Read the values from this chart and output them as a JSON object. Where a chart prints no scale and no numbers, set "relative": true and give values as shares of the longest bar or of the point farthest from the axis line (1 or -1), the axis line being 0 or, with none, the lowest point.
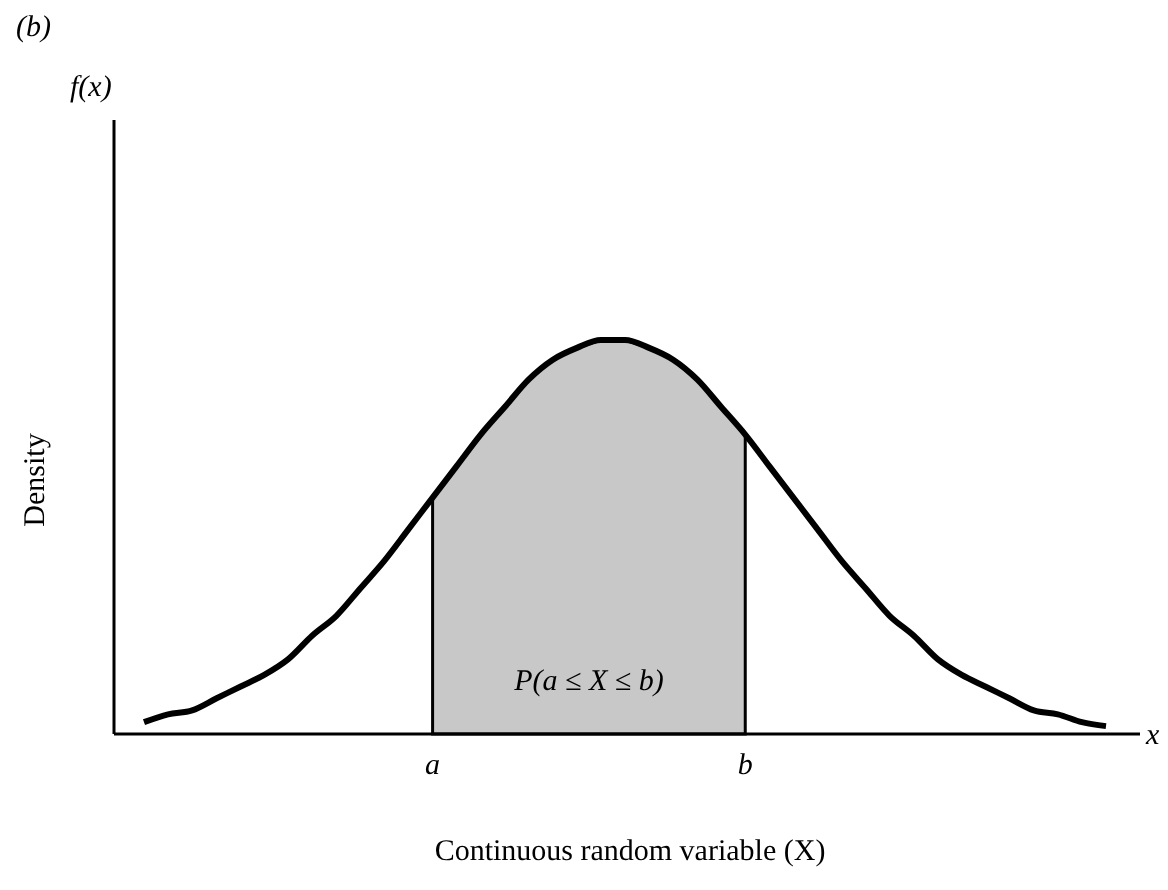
{
  "chart_data": {
    "type": "line",
    "title": "(b)",
    "xlabel": "Continuous random variable (X)",
    "ylabel": "Density",
    "relative": true,
    "categories": [
      null,
      null,
      null,
      null,
      null,
      null,
      null,
      null,
      null,
      null,
      null,
      null,
      "a",
      null,
      null,
      null,
      null,
      null,
      null,
      null,
      null,
      null,
      null,
      null,
      null,
      "b",
      null,
      null,
      null,
      null,
      null,
      null,
      null,
      null,
      null,
      null,
      null,
      null,
      null,
      null,
      null
    ],
    "series": [
      {
        "type": "area",
        "color": "#c8c8c8",
        "values": [
          null,
          null,
          null,
          null,
          null,
          null,
          null,
          null,
          null,
          null,
          null,
          null,
          0.6,
          0.68,
          0.76,
          0.83,
          0.9,
          0.95,
          0.98,
          1.0,
          1.0,
          0.98,
          0.95,
          0.9,
          0.83,
          0.76,
          null,
          null,
          null,
          null,
          null,
          null,
          null,
          null,
          null,
          null,
          null,
          null,
          null,
          null,
          null
        ]
      },
      {
        "type": "line",
        "color": "#000000",
        "values": [
          0.03,
          0.05,
          0.06,
          0.09,
          0.12,
          0.15,
          0.19,
          0.25,
          0.3,
          0.37,
          0.44,
          0.52,
          0.6,
          0.68,
          0.76,
          0.83,
          0.9,
          0.95,
          0.98,
          1.0,
          1.0,
          0.98,
          0.95,
          0.9,
          0.83,
          0.76,
          0.68,
          0.6,
          0.52,
          0.44,
          0.37,
          0.3,
          0.25,
          0.19,
          0.15,
          0.12,
          0.09,
          0.06,
          0.05,
          0.03,
          0.02
        ]
      }
    ],
    "annotations": [
      "f(x)",
      "x",
      "P(a ≤ X ≤ b)"
    ]
  }
}
